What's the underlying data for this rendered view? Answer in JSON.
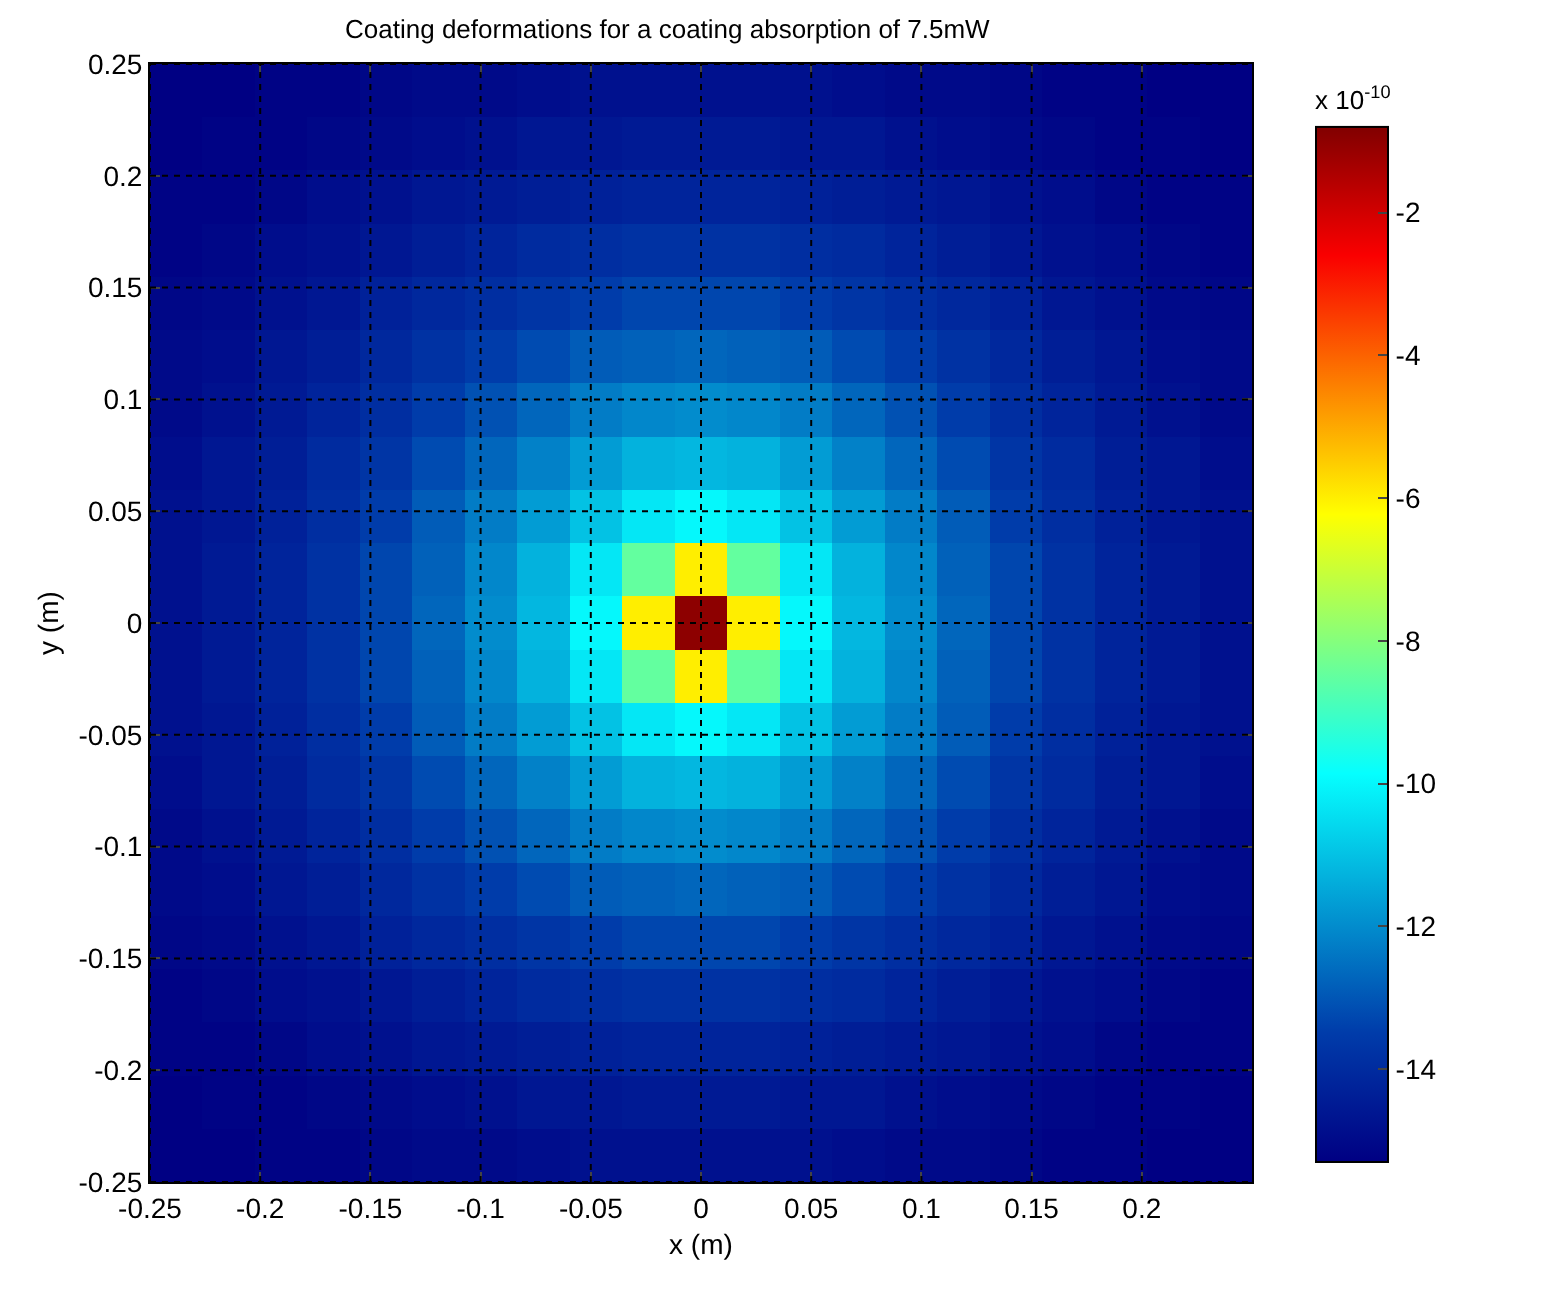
{
  "chart_data": {
    "type": "heatmap",
    "title": "Coating deformations for a coating absorption of 7.5mW",
    "xlabel": "x (m)",
    "ylabel": "y (m)",
    "clabel": "x 10$^{-10}$",
    "cells": [
      [
        -15.3,
        -15.3,
        -15.2,
        -15.2,
        -15.1,
        -15,
        -15,
        -14.9,
        -14.8,
        -14.8,
        -14.8,
        -14.8,
        -14.8,
        -14.9,
        -15,
        -15,
        -15.1,
        -15.2,
        -15.2,
        -15.3,
        -15.3
      ],
      [
        -15.3,
        -15.2,
        -15.2,
        -15.1,
        -15,
        -14.9,
        -14.8,
        -14.6,
        -14.6,
        -14.5,
        -14.5,
        -14.5,
        -14.6,
        -14.6,
        -14.8,
        -14.9,
        -15,
        -15.1,
        -15.2,
        -15.2,
        -15.3
      ],
      [
        -15.2,
        -15.2,
        -15.1,
        -14.9,
        -14.8,
        -14.6,
        -14.5,
        -14.4,
        -14.3,
        -14.2,
        -14.2,
        -14.2,
        -14.3,
        -14.4,
        -14.5,
        -14.6,
        -14.8,
        -14.9,
        -15.1,
        -15.2,
        -15.2
      ],
      [
        -15.2,
        -15.1,
        -14.9,
        -14.8,
        -14.6,
        -14.4,
        -14.2,
        -14,
        -13.9,
        -13.8,
        -13.8,
        -13.8,
        -13.9,
        -14,
        -14.2,
        -14.4,
        -14.6,
        -14.8,
        -14.9,
        -15.1,
        -15.2
      ],
      [
        -15.1,
        -15,
        -14.8,
        -14.6,
        -14.3,
        -14.1,
        -13.9,
        -13.7,
        -13.5,
        -13.3,
        -13.3,
        -13.3,
        -13.5,
        -13.7,
        -13.9,
        -14.1,
        -14.3,
        -14.6,
        -14.8,
        -15,
        -15.1
      ],
      [
        -15,
        -14.9,
        -14.6,
        -14.4,
        -14.1,
        -13.8,
        -13.5,
        -13.2,
        -12.9,
        -12.8,
        -12.7,
        -12.8,
        -12.9,
        -13.2,
        -13.5,
        -13.8,
        -14.1,
        -14.4,
        -14.6,
        -14.9,
        -15
      ],
      [
        -15,
        -14.8,
        -14.5,
        -14.2,
        -13.9,
        -13.5,
        -13.1,
        -12.7,
        -12.3,
        -12.1,
        -12,
        -12.1,
        -12.3,
        -12.7,
        -13.1,
        -13.5,
        -13.9,
        -14.2,
        -14.5,
        -14.8,
        -15
      ],
      [
        -14.9,
        -14.6,
        -14.4,
        -14,
        -13.7,
        -13.2,
        -12.7,
        -12.2,
        -11.7,
        -11.3,
        -11.2,
        -11.3,
        -11.7,
        -12.2,
        -12.7,
        -13.2,
        -13.7,
        -14,
        -14.4,
        -14.6,
        -14.9
      ],
      [
        -14.8,
        -14.6,
        -14.3,
        -13.9,
        -13.5,
        -12.9,
        -12.3,
        -11.7,
        -11,
        -10.3,
        -10,
        -10.3,
        -11,
        -11.7,
        -12.3,
        -12.9,
        -13.5,
        -13.9,
        -14.3,
        -14.6,
        -14.8
      ],
      [
        -14.8,
        -14.5,
        -14.2,
        -13.8,
        -13.3,
        -12.8,
        -12.1,
        -11.3,
        -10.3,
        -8.5,
        -6,
        -8.5,
        -10.3,
        -11.3,
        -12.1,
        -12.8,
        -13.3,
        -13.8,
        -14.2,
        -14.5,
        -14.8
      ],
      [
        -14.8,
        -14.5,
        -14.2,
        -13.8,
        -13.3,
        -12.7,
        -12,
        -11.2,
        -10,
        -6,
        -1,
        -6,
        -10,
        -11.2,
        -12,
        -12.7,
        -13.3,
        -13.8,
        -14.2,
        -14.5,
        -14.8
      ],
      [
        -14.8,
        -14.5,
        -14.2,
        -13.8,
        -13.3,
        -12.8,
        -12.1,
        -11.3,
        -10.3,
        -8.5,
        -6,
        -8.5,
        -10.3,
        -11.3,
        -12.1,
        -12.8,
        -13.3,
        -13.8,
        -14.2,
        -14.5,
        -14.8
      ],
      [
        -14.8,
        -14.6,
        -14.3,
        -13.9,
        -13.5,
        -12.9,
        -12.3,
        -11.7,
        -11,
        -10.3,
        -10,
        -10.3,
        -11,
        -11.7,
        -12.3,
        -12.9,
        -13.5,
        -13.9,
        -14.3,
        -14.6,
        -14.8
      ],
      [
        -14.9,
        -14.6,
        -14.4,
        -14,
        -13.7,
        -13.2,
        -12.7,
        -12.2,
        -11.7,
        -11.3,
        -11.2,
        -11.3,
        -11.7,
        -12.2,
        -12.7,
        -13.2,
        -13.7,
        -14,
        -14.4,
        -14.6,
        -14.9
      ],
      [
        -15,
        -14.8,
        -14.5,
        -14.2,
        -13.9,
        -13.5,
        -13.1,
        -12.7,
        -12.3,
        -12.1,
        -12,
        -12.1,
        -12.3,
        -12.7,
        -13.1,
        -13.5,
        -13.9,
        -14.2,
        -14.5,
        -14.8,
        -15
      ],
      [
        -15,
        -14.9,
        -14.6,
        -14.4,
        -14.1,
        -13.8,
        -13.5,
        -13.2,
        -12.9,
        -12.8,
        -12.7,
        -12.8,
        -12.9,
        -13.2,
        -13.5,
        -13.8,
        -14.1,
        -14.4,
        -14.6,
        -14.9,
        -15
      ],
      [
        -15.1,
        -15,
        -14.8,
        -14.6,
        -14.3,
        -14.1,
        -13.9,
        -13.7,
        -13.5,
        -13.3,
        -13.3,
        -13.3,
        -13.5,
        -13.7,
        -13.9,
        -14.1,
        -14.3,
        -14.6,
        -14.8,
        -15,
        -15.1
      ],
      [
        -15.2,
        -15.1,
        -14.9,
        -14.8,
        -14.6,
        -14.4,
        -14.2,
        -14,
        -13.9,
        -13.8,
        -13.8,
        -13.8,
        -13.9,
        -14,
        -14.2,
        -14.4,
        -14.6,
        -14.8,
        -14.9,
        -15.1,
        -15.2
      ],
      [
        -15.2,
        -15.2,
        -15.1,
        -14.9,
        -14.8,
        -14.6,
        -14.5,
        -14.4,
        -14.3,
        -14.2,
        -14.2,
        -14.2,
        -14.3,
        -14.4,
        -14.5,
        -14.6,
        -14.8,
        -14.9,
        -15.1,
        -15.2,
        -15.2
      ],
      [
        -15.3,
        -15.2,
        -15.2,
        -15.1,
        -15,
        -14.9,
        -14.8,
        -14.6,
        -14.6,
        -14.5,
        -14.5,
        -14.5,
        -14.6,
        -14.6,
        -14.8,
        -14.9,
        -15,
        -15.1,
        -15.2,
        -15.2,
        -15.3
      ],
      [
        -15.3,
        -15.3,
        -15.2,
        -15.2,
        -15.1,
        -15,
        -15,
        -14.9,
        -14.8,
        -14.8,
        -14.8,
        -14.8,
        -14.8,
        -14.9,
        -15,
        -15,
        -15.1,
        -15.2,
        -15.2,
        -15.3,
        -15.3
      ]
    ],
    "xlim": [
      -0.25,
      0.25
    ],
    "xticks": [
      -0.25,
      -0.2,
      -0.15,
      -0.1,
      -0.05,
      0,
      0.05,
      0.1,
      0.15,
      0.2
    ],
    "ylim": [
      -0.25,
      0.25
    ],
    "yticks": [
      -0.25,
      -0.2,
      -0.15,
      -0.1,
      -0.05,
      0,
      0.05,
      0.1,
      0.15,
      0.2,
      0.25
    ],
    "clim": [
      -15.3,
      -0.8
    ],
    "cticks": [
      -14,
      -12,
      -10,
      -8,
      -6,
      -4,
      -2
    ],
    "grid": true
  }
}
